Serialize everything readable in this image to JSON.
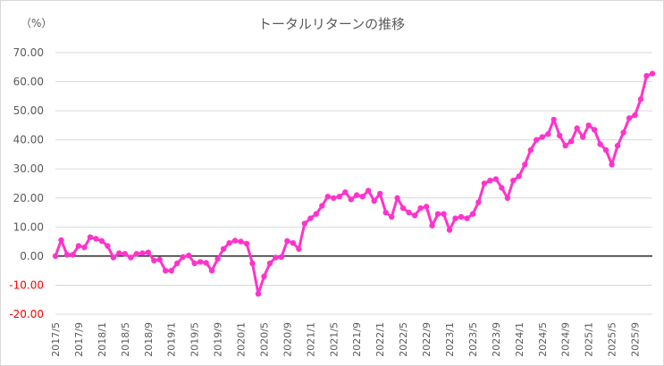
{
  "chart_data": {
    "type": "line",
    "title": "トータルリターンの推移",
    "yunit": "（%）",
    "ylim": [
      -20,
      70
    ],
    "yticks": [
      "70.00",
      "60.00",
      "50.00",
      "40.00",
      "30.00",
      "20.00",
      "10.00",
      "0.00",
      "-10.00",
      "-20.00"
    ],
    "ytick_values": [
      70,
      60,
      50,
      40,
      30,
      20,
      10,
      0,
      -10,
      -20
    ],
    "negative_tick_color": "#ff0000",
    "xtick_labels": [
      "2017/5",
      "2017/9",
      "2018/1",
      "2018/5",
      "2018/9",
      "2019/1",
      "2019/5",
      "2019/9",
      "2020/1",
      "2020/5",
      "2020/9",
      "2021/1",
      "2021/5",
      "2021/9",
      "2022/1",
      "2022/5",
      "2022/9",
      "2023/1",
      "2023/5",
      "2023/9",
      "2024/1",
      "2024/5",
      "2024/9",
      "2025/1",
      "2025/5",
      "2025/9"
    ],
    "x_start": "2017/5",
    "x_end": "2025/11",
    "grid": true,
    "zero_line": true,
    "series": [
      {
        "color": "#ff33cc",
        "values": [
          0.0,
          5.5,
          0.5,
          0.5,
          3.5,
          3.0,
          6.5,
          6.0,
          5.2,
          3.5,
          -0.5,
          1.0,
          0.8,
          -0.5,
          0.8,
          1.0,
          1.3,
          -1.5,
          -1.2,
          -5.0,
          -5.0,
          -2.5,
          -0.3,
          0.2,
          -2.5,
          -2.0,
          -2.3,
          -5.0,
          -1.0,
          2.5,
          4.5,
          5.3,
          5.0,
          4.3,
          -2.5,
          -13.0,
          -7.0,
          -2.5,
          -0.5,
          -0.3,
          5.2,
          4.5,
          2.5,
          11.2,
          13.0,
          14.5,
          17.3,
          20.5,
          20.0,
          20.5,
          22.0,
          19.5,
          21.0,
          20.5,
          22.5,
          19.0,
          21.5,
          15.0,
          13.5,
          20.0,
          16.5,
          15.0,
          14.0,
          16.5,
          17.0,
          10.5,
          14.5,
          14.5,
          9.0,
          13.0,
          13.5,
          13.0,
          14.5,
          18.5,
          25.0,
          26.0,
          26.5,
          23.5,
          20.0,
          26.0,
          27.5,
          31.5,
          36.5,
          40.0,
          41.0,
          42.0,
          47.0,
          41.5,
          38.0,
          39.5,
          44.0,
          41.0,
          45.0,
          43.5,
          38.5,
          36.5,
          31.5,
          38.0,
          42.5,
          47.5,
          48.5,
          54.0,
          62.0,
          62.8
        ]
      }
    ]
  }
}
